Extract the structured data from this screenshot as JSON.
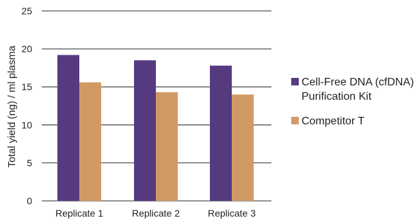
{
  "chart_data": {
    "type": "bar",
    "title": "",
    "xlabel": "",
    "ylabel": "Total yield (ng) / ml plasma",
    "ylim": [
      0,
      25
    ],
    "yticks": [
      0,
      5,
      10,
      15,
      20,
      25
    ],
    "grid": "horizontal",
    "legend_position": "right",
    "categories": [
      "Replicate 1",
      "Replicate 2",
      "Replicate 3"
    ],
    "series": [
      {
        "name_lines": [
          "Cell-Free DNA (cfDNA)",
          "Purification Kit"
        ],
        "color": "#563a80",
        "values": [
          19.2,
          18.5,
          17.8
        ]
      },
      {
        "name_lines": [
          "Competitor T"
        ],
        "color": "#d19a64",
        "values": [
          15.6,
          14.3,
          14.0
        ]
      }
    ]
  }
}
